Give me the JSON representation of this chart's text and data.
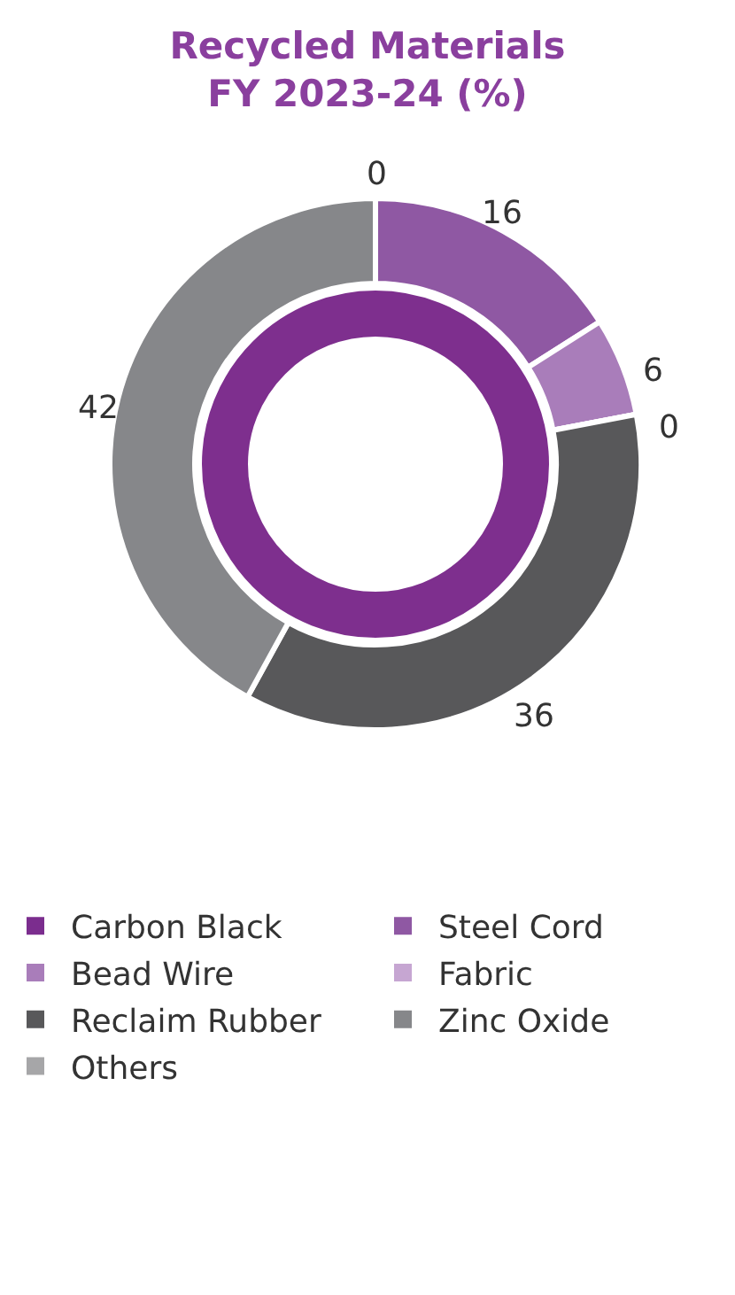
{
  "chart_data": {
    "type": "donut",
    "title": "Recycled Materials\nFY 2023-24 (%)",
    "categories": [
      "Carbon Black",
      "Steel Cord",
      "Bead Wire",
      "Fabric",
      "Reclaim Rubber",
      "Zinc Oxide",
      "Others"
    ],
    "values": [
      0,
      16,
      6,
      0,
      36,
      42,
      0
    ],
    "value_labels": [
      "0",
      "16",
      "6",
      "0",
      "36",
      "42",
      null
    ],
    "colors": [
      "#7b2d8e",
      "#8f58a3",
      "#a97dba",
      "#c6a6d2",
      "#58585a",
      "#86878a",
      "#a6a6a8"
    ],
    "legend": "bottom"
  }
}
